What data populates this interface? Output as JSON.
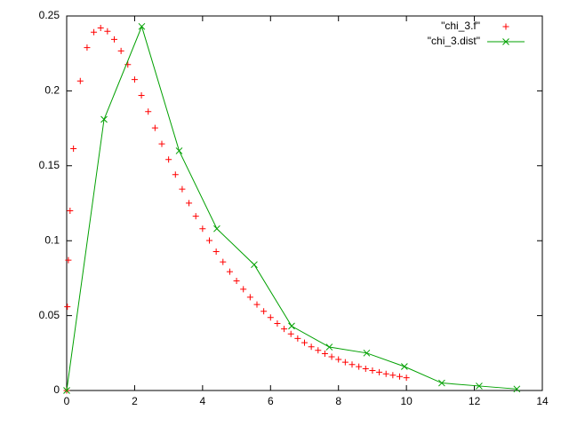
{
  "chart_data": {
    "type": "line",
    "xlim": [
      0,
      14
    ],
    "ylim": [
      0,
      0.25
    ],
    "xticks": [
      0,
      2,
      4,
      6,
      8,
      10,
      12,
      14
    ],
    "yticks": [
      0,
      0.05,
      0.1,
      0.15,
      0.2,
      0.25
    ],
    "legend": "top-right",
    "series": [
      {
        "name": "\"chi_3.f\"",
        "color": "#ff0000",
        "marker": "plus",
        "line": false,
        "x": [
          0,
          0.02,
          0.05,
          0.1,
          0.2,
          0.4,
          0.6,
          0.8,
          1.0,
          1.2,
          1.4,
          1.6,
          1.8,
          2.0,
          2.2,
          2.4,
          2.6,
          2.8,
          3.0,
          3.2,
          3.4,
          3.6,
          3.8,
          4.0,
          4.2,
          4.4,
          4.6,
          4.8,
          5.0,
          5.2,
          5.4,
          5.6,
          5.8,
          6.0,
          6.2,
          6.4,
          6.6,
          6.8,
          7.0,
          7.2,
          7.4,
          7.6,
          7.8,
          8.0,
          8.2,
          8.4,
          8.6,
          8.8,
          9.0,
          9.2,
          9.4,
          9.6,
          9.8,
          10.0
        ],
        "values": [
          0,
          0.0559,
          0.087,
          0.12,
          0.1614,
          0.2066,
          0.2289,
          0.2392,
          0.242,
          0.2398,
          0.2344,
          0.2267,
          0.2176,
          0.2076,
          0.197,
          0.1862,
          0.1753,
          0.1646,
          0.1542,
          0.1441,
          0.1344,
          0.1251,
          0.1163,
          0.108,
          0.1001,
          0.0927,
          0.0858,
          0.0793,
          0.0732,
          0.0676,
          0.0623,
          0.0574,
          0.0529,
          0.0487,
          0.0447,
          0.0411,
          0.0378,
          0.0347,
          0.0319,
          0.0292,
          0.0268,
          0.0246,
          0.0225,
          0.0207,
          0.0189,
          0.0173,
          0.0159,
          0.0145,
          0.0133,
          0.0122,
          0.0111,
          0.0102,
          0.0093,
          0.0085
        ]
      },
      {
        "name": "\"chi_3.dist\"",
        "color": "#00a000",
        "marker": "cross",
        "line": true,
        "x": [
          0,
          1.1,
          2.21,
          3.31,
          4.42,
          5.52,
          6.62,
          7.73,
          8.83,
          9.94,
          11.04,
          12.14,
          13.25
        ],
        "values": [
          0,
          0.181,
          0.243,
          0.16,
          0.108,
          0.084,
          0.043,
          0.029,
          0.025,
          0.016,
          0.005,
          0.003,
          0.001
        ]
      }
    ]
  }
}
